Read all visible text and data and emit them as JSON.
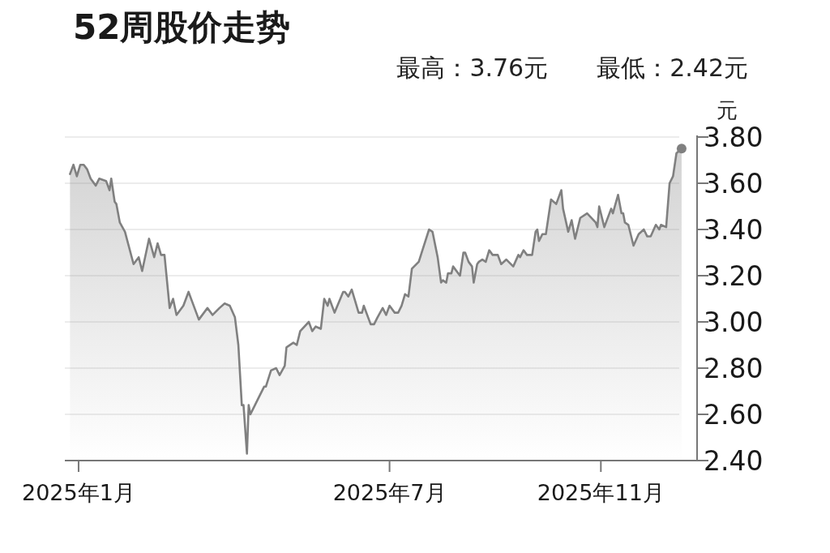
{
  "chart_data": {
    "type": "area",
    "title": "52周股价走势",
    "subtitle": "最高：3.76元　　最低：2.42元",
    "ylabel": "元",
    "xlim": [
      "2024-12-24",
      "2025-12-27"
    ],
    "ylim": [
      2.4,
      3.8
    ],
    "xticks": [
      {
        "value": "2025-01",
        "label": "2025年1月"
      },
      {
        "value": "2025-07",
        "label": "2025年7月"
      },
      {
        "value": "2025-11",
        "label": "2025年11月"
      }
    ],
    "yticks": [
      {
        "value": 2.4,
        "label": "2.40"
      },
      {
        "value": 2.6,
        "label": "2.60"
      },
      {
        "value": 2.8,
        "label": "2.80"
      },
      {
        "value": 3.0,
        "label": "3.00"
      },
      {
        "value": 3.2,
        "label": "3.20"
      },
      {
        "value": 3.4,
        "label": "3.40"
      },
      {
        "value": 3.6,
        "label": "3.60"
      },
      {
        "value": 3.8,
        "label": "3.80"
      }
    ],
    "grid": "y",
    "series": [
      {
        "color": "#808080",
        "x": [
          "2024-12-27",
          "2024-12-29",
          "2024-12-31",
          "2025-01-02",
          "2025-01-04",
          "2025-01-06",
          "2025-01-08",
          "2025-01-11",
          "2025-01-13",
          "2025-01-17",
          "2025-01-19",
          "2025-01-20",
          "2025-01-22",
          "2025-01-23",
          "2025-01-25",
          "2025-01-28",
          "2025-02-02",
          "2025-02-05",
          "2025-02-07",
          "2025-02-11",
          "2025-02-14",
          "2025-02-16",
          "2025-02-18",
          "2025-02-20",
          "2025-02-23",
          "2025-02-25",
          "2025-02-27",
          "2025-03-03",
          "2025-03-06",
          "2025-03-08",
          "2025-03-12",
          "2025-03-17",
          "2025-03-20",
          "2025-03-24",
          "2025-03-27",
          "2025-03-30",
          "2025-04-02",
          "2025-04-04",
          "2025-04-06",
          "2025-04-07",
          "2025-04-09",
          "2025-04-10",
          "2025-04-11",
          "2025-04-15",
          "2025-04-19",
          "2025-04-20",
          "2025-04-23",
          "2025-04-26",
          "2025-04-28",
          "2025-05-01",
          "2025-05-02",
          "2025-05-06",
          "2025-05-08",
          "2025-05-10",
          "2025-05-15",
          "2025-05-17",
          "2025-05-19",
          "2025-05-22",
          "2025-05-24",
          "2025-05-26",
          "2025-05-27",
          "2025-05-30",
          "2025-06-04",
          "2025-06-05",
          "2025-06-07",
          "2025-06-09",
          "2025-06-13",
          "2025-06-15",
          "2025-06-16",
          "2025-06-20",
          "2025-06-22",
          "2025-06-24",
          "2025-06-27",
          "2025-06-29",
          "2025-07-01",
          "2025-07-04",
          "2025-07-06",
          "2025-07-08",
          "2025-07-10",
          "2025-07-12",
          "2025-07-14",
          "2025-07-18",
          "2025-07-21",
          "2025-07-24",
          "2025-07-26",
          "2025-07-29",
          "2025-07-31",
          "2025-08-01",
          "2025-08-03",
          "2025-08-04",
          "2025-08-06",
          "2025-08-07",
          "2025-08-11",
          "2025-08-13",
          "2025-08-14",
          "2025-08-16",
          "2025-08-18",
          "2025-08-19",
          "2025-08-21",
          "2025-08-22",
          "2025-08-24",
          "2025-08-26",
          "2025-08-28",
          "2025-08-30",
          "2025-09-02",
          "2025-09-04",
          "2025-09-07",
          "2025-09-11",
          "2025-09-14",
          "2025-09-15",
          "2025-09-17",
          "2025-09-19",
          "2025-09-22",
          "2025-09-24",
          "2025-09-25",
          "2025-09-26",
          "2025-09-28",
          "2025-09-30",
          "2025-10-03",
          "2025-10-06",
          "2025-10-09",
          "2025-10-10",
          "2025-10-13",
          "2025-10-15",
          "2025-10-17",
          "2025-10-20",
          "2025-10-24",
          "2025-10-29",
          "2025-10-30",
          "2025-10-31",
          "2025-11-03",
          "2025-11-07",
          "2025-11-08",
          "2025-11-11",
          "2025-11-13",
          "2025-11-14",
          "2025-11-15",
          "2025-11-17",
          "2025-11-20",
          "2025-11-23",
          "2025-11-26",
          "2025-11-28",
          "2025-11-30",
          "2025-12-03",
          "2025-12-05",
          "2025-12-06",
          "2025-12-09",
          "2025-12-11",
          "2025-12-13",
          "2025-12-15",
          "2025-12-18"
        ],
        "values": [
          3.64,
          3.68,
          3.63,
          3.68,
          3.68,
          3.66,
          3.62,
          3.59,
          3.62,
          3.61,
          3.57,
          3.62,
          3.52,
          3.51,
          3.43,
          3.39,
          3.25,
          3.28,
          3.22,
          3.36,
          3.28,
          3.34,
          3.29,
          3.29,
          3.06,
          3.1,
          3.03,
          3.07,
          3.13,
          3.09,
          3.01,
          3.06,
          3.03,
          3.06,
          3.08,
          3.07,
          3.02,
          2.9,
          2.64,
          2.64,
          2.43,
          2.64,
          2.6,
          2.66,
          2.72,
          2.72,
          2.79,
          2.8,
          2.77,
          2.81,
          2.89,
          2.91,
          2.9,
          2.96,
          3.0,
          2.96,
          2.98,
          2.97,
          3.1,
          3.07,
          3.1,
          3.04,
          3.13,
          3.13,
          3.11,
          3.14,
          3.04,
          3.04,
          3.07,
          2.99,
          2.99,
          3.02,
          3.06,
          3.03,
          3.07,
          3.04,
          3.04,
          3.07,
          3.12,
          3.11,
          3.23,
          3.26,
          3.33,
          3.4,
          3.39,
          3.28,
          3.17,
          3.18,
          3.17,
          3.21,
          3.21,
          3.24,
          3.2,
          3.3,
          3.3,
          3.26,
          3.24,
          3.17,
          3.25,
          3.26,
          3.27,
          3.26,
          3.31,
          3.29,
          3.29,
          3.25,
          3.27,
          3.24,
          3.29,
          3.28,
          3.31,
          3.29,
          3.29,
          3.39,
          3.4,
          3.35,
          3.38,
          3.38,
          3.53,
          3.51,
          3.57,
          3.49,
          3.39,
          3.44,
          3.36,
          3.45,
          3.47,
          3.43,
          3.41,
          3.5,
          3.41,
          3.49,
          3.47,
          3.55,
          3.47,
          3.47,
          3.43,
          3.42,
          3.33,
          3.38,
          3.4,
          3.37,
          3.37,
          3.42,
          3.4,
          3.42,
          3.41,
          3.6,
          3.63,
          3.73,
          3.75
        ]
      },
      {
        "type": "scatter",
        "color": "#808080",
        "x": [
          "2025-12-18"
        ],
        "values": [
          3.75
        ]
      }
    ]
  }
}
